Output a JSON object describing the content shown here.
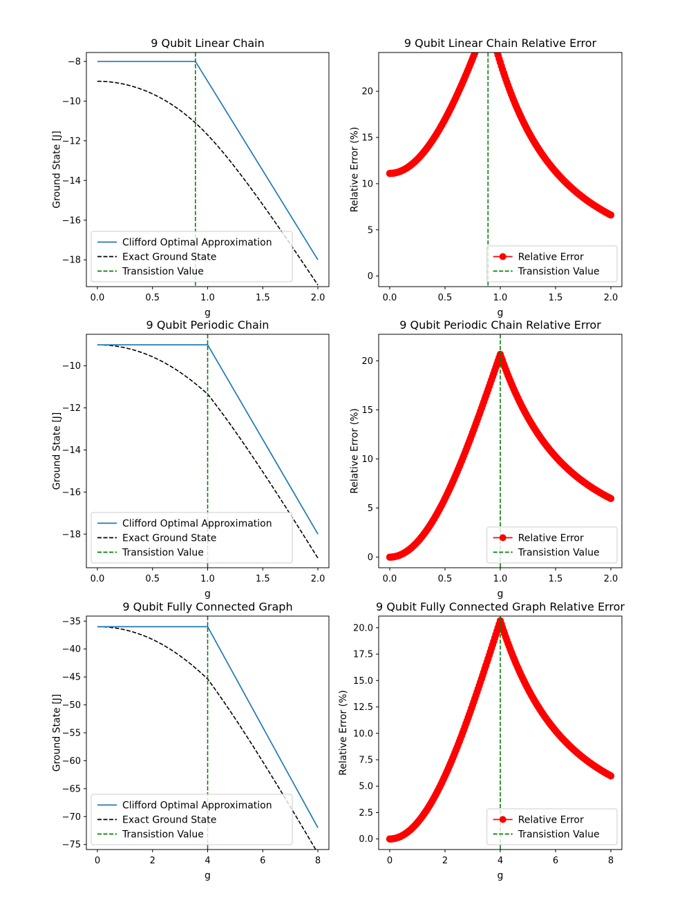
{
  "colors": {
    "clifford": "#1f77b4",
    "exact": "#000000",
    "transition": "#008000",
    "relative_error": "#ff0000"
  },
  "chart_data": [
    {
      "type": "line",
      "title": "9 Qubit Linear Chain",
      "xlabel": "g",
      "ylabel": "Ground State [J]",
      "xlim": [
        -0.1,
        2.1
      ],
      "ylim": [
        -19.35,
        -7.55
      ],
      "xticks": [
        0.0,
        0.5,
        1.0,
        1.5,
        2.0
      ],
      "xtick_labels": [
        "0.0",
        "0.5",
        "1.0",
        "1.5",
        "2.0"
      ],
      "yticks": [
        -8,
        -10,
        -12,
        -14,
        -16,
        -18
      ],
      "ytick_labels": [
        "−8",
        "−10",
        "−12",
        "−14",
        "−16",
        "−18"
      ],
      "series": [
        {
          "name": "Clifford Optimal Approximation",
          "kind": "clifford",
          "N": 8,
          "base": -8,
          "slope": -9,
          "transition": 0.889
        },
        {
          "name": "Exact Ground State",
          "kind": "exact",
          "n_sites": 9,
          "periodic": false,
          "gscale": 1,
          "escale": 1
        }
      ],
      "transition": {
        "name": "Transistion Value",
        "x": 0.889
      },
      "legend": {
        "position": "lower-left",
        "entries": [
          "Clifford Optimal Approximation",
          "Exact Ground State",
          "Transistion Value"
        ]
      }
    },
    {
      "type": "scatter",
      "title": "9 Qubit Linear Chain Relative Error",
      "xlabel": "g",
      "ylabel": "Relative Error (%)",
      "xlim": [
        -0.1,
        2.1
      ],
      "ylim": [
        -1.15,
        24.2
      ],
      "xticks": [
        0.0,
        0.5,
        1.0,
        1.5,
        2.0
      ],
      "xtick_labels": [
        "0.0",
        "0.5",
        "1.0",
        "1.5",
        "2.0"
      ],
      "yticks": [
        0,
        5,
        10,
        15,
        20
      ],
      "ytick_labels": [
        "0",
        "5",
        "10",
        "15",
        "20"
      ],
      "series": [
        {
          "name": "Relative Error",
          "kind": "relerr",
          "source": 0,
          "points": 201
        }
      ],
      "transition": {
        "name": "Transistion Value",
        "x": 0.889
      },
      "legend": {
        "position": "lower-right",
        "entries": [
          "Relative Error",
          "Transistion Value"
        ]
      }
    },
    {
      "type": "line",
      "title": "9 Qubit Periodic Chain",
      "xlabel": "g",
      "ylabel": "Ground State [J]",
      "xlim": [
        -0.1,
        2.1
      ],
      "ylim": [
        -19.6,
        -8.5
      ],
      "xticks": [
        0.0,
        0.5,
        1.0,
        1.5,
        2.0
      ],
      "xtick_labels": [
        "0.0",
        "0.5",
        "1.0",
        "1.5",
        "2.0"
      ],
      "yticks": [
        -10,
        -12,
        -14,
        -16,
        -18
      ],
      "ytick_labels": [
        "−10",
        "−12",
        "−14",
        "−16",
        "−18"
      ],
      "series": [
        {
          "name": "Clifford Optimal Approximation",
          "kind": "clifford",
          "N": 9,
          "base": -9,
          "slope": -9,
          "transition": 1.0
        },
        {
          "name": "Exact Ground State",
          "kind": "exact",
          "n_sites": 9,
          "periodic": true,
          "gscale": 1,
          "escale": 1
        }
      ],
      "transition": {
        "name": "Transistion Value",
        "x": 1.0
      },
      "legend": {
        "position": "lower-left",
        "entries": [
          "Clifford Optimal Approximation",
          "Exact Ground State",
          "Transistion Value"
        ]
      }
    },
    {
      "type": "scatter",
      "title": "9 Qubit Periodic Chain Relative Error",
      "xlabel": "g",
      "ylabel": "Relative Error (%)",
      "xlim": [
        -0.1,
        2.1
      ],
      "ylim": [
        -1.08,
        22.7
      ],
      "xticks": [
        0.0,
        0.5,
        1.0,
        1.5,
        2.0
      ],
      "xtick_labels": [
        "0.0",
        "0.5",
        "1.0",
        "1.5",
        "2.0"
      ],
      "yticks": [
        0,
        5,
        10,
        15,
        20
      ],
      "ytick_labels": [
        "0",
        "5",
        "10",
        "15",
        "20"
      ],
      "series": [
        {
          "name": "Relative Error",
          "kind": "relerr",
          "source": 2,
          "points": 201
        }
      ],
      "transition": {
        "name": "Transistion Value",
        "x": 1.0
      },
      "legend": {
        "position": "lower-right",
        "entries": [
          "Relative Error",
          "Transistion Value"
        ]
      }
    },
    {
      "type": "line",
      "title": "9 Qubit Fully Connected Graph",
      "xlabel": "g",
      "ylabel": "Ground State [J]",
      "xlim": [
        -0.4,
        8.4
      ],
      "ylim": [
        -75.9,
        -34.1
      ],
      "xticks": [
        0,
        2,
        4,
        6,
        8
      ],
      "xtick_labels": [
        "0",
        "2",
        "4",
        "6",
        "8"
      ],
      "yticks": [
        -35,
        -40,
        -45,
        -50,
        -55,
        -60,
        -65,
        -70,
        -75
      ],
      "ytick_labels": [
        "−35",
        "−40",
        "−45",
        "−50",
        "−55",
        "−60",
        "−65",
        "−70",
        "−75"
      ],
      "series": [
        {
          "name": "Clifford Optimal Approximation",
          "kind": "clifford",
          "N": 36,
          "base": -36,
          "slope": -9,
          "transition": 4.0
        },
        {
          "name": "Exact Ground State",
          "kind": "exact",
          "n_sites": 9,
          "periodic": true,
          "gscale": 0.25,
          "escale": 4
        }
      ],
      "transition": {
        "name": "Transistion Value",
        "x": 4.0
      },
      "legend": {
        "position": "lower-left",
        "entries": [
          "Clifford Optimal Approximation",
          "Exact Ground State",
          "Transistion Value"
        ]
      }
    },
    {
      "type": "scatter",
      "title": "9 Qubit Fully Connected Graph Relative Error",
      "xlabel": "g",
      "ylabel": "Relative Error (%)",
      "xlim": [
        -0.4,
        8.4
      ],
      "ylim": [
        -1.0,
        21.1
      ],
      "xticks": [
        0,
        2,
        4,
        6,
        8
      ],
      "xtick_labels": [
        "0",
        "2",
        "4",
        "6",
        "8"
      ],
      "yticks": [
        0.0,
        2.5,
        5.0,
        7.5,
        10.0,
        12.5,
        15.0,
        17.5,
        20.0
      ],
      "ytick_labels": [
        "0.0",
        "2.5",
        "5.0",
        "7.5",
        "10.0",
        "12.5",
        "15.0",
        "17.5",
        "20.0"
      ],
      "series": [
        {
          "name": "Relative Error",
          "kind": "relerr",
          "source": 4,
          "points": 201
        }
      ],
      "transition": {
        "name": "Transistion Value",
        "x": 4.0
      },
      "legend": {
        "position": "lower-right",
        "entries": [
          "Relative Error",
          "Transistion Value"
        ]
      }
    }
  ]
}
